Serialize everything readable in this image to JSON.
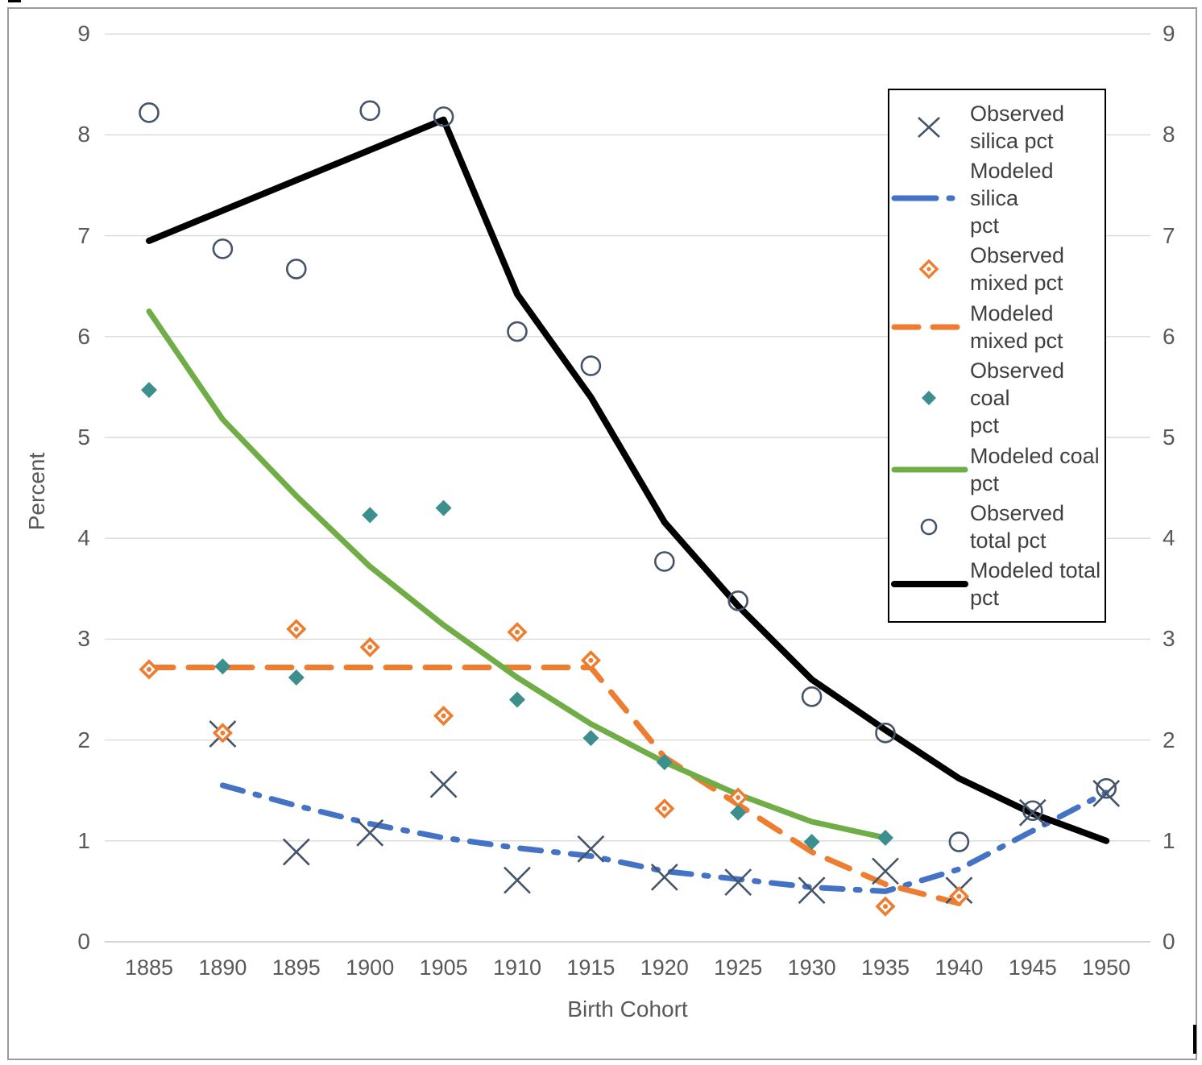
{
  "chart_data": {
    "type": "line",
    "title": "",
    "xlabel": "Birth Cohort",
    "ylabel": "Percent",
    "x_categories": [
      1885,
      1890,
      1895,
      1900,
      1905,
      1910,
      1915,
      1920,
      1925,
      1930,
      1935,
      1940,
      1945,
      1950
    ],
    "ylim": [
      0,
      9
    ],
    "yticks": [
      0,
      1,
      2,
      3,
      4,
      5,
      6,
      7,
      8,
      9
    ],
    "y_axis_sides": [
      "left",
      "right"
    ],
    "grid": true,
    "legend_position": "top-right",
    "series": [
      {
        "id": "modeled-silica",
        "label": "Modeled silica pct",
        "label_lines": [
          "Modeled silica",
          "pct"
        ],
        "kind": "line",
        "dash": "dashdot",
        "width": 7,
        "color": "#4472C4",
        "points": [
          [
            1890,
            1.55
          ],
          [
            1895,
            1.35
          ],
          [
            1900,
            1.17
          ],
          [
            1905,
            1.03
          ],
          [
            1910,
            0.93
          ],
          [
            1915,
            0.85
          ],
          [
            1920,
            0.7
          ],
          [
            1925,
            0.62
          ],
          [
            1930,
            0.54
          ],
          [
            1935,
            0.5
          ],
          [
            1940,
            0.72
          ],
          [
            1945,
            1.1
          ],
          [
            1950,
            1.48
          ]
        ]
      },
      {
        "id": "modeled-mixed",
        "label": "Modeled mixed pct",
        "label_lines": [
          "Modeled",
          "mixed pct"
        ],
        "kind": "line",
        "dash": "dashed",
        "width": 7,
        "color": "#ED7D31",
        "points": [
          [
            1885,
            2.72
          ],
          [
            1890,
            2.72
          ],
          [
            1895,
            2.72
          ],
          [
            1900,
            2.72
          ],
          [
            1905,
            2.72
          ],
          [
            1910,
            2.72
          ],
          [
            1915,
            2.72
          ],
          [
            1920,
            1.83
          ],
          [
            1925,
            1.36
          ],
          [
            1930,
            0.89
          ],
          [
            1935,
            0.57
          ],
          [
            1940,
            0.38
          ]
        ]
      },
      {
        "id": "modeled-coal",
        "label": "Modeled coal pct",
        "label_lines": [
          "Modeled coal",
          "pct"
        ],
        "kind": "line",
        "dash": "solid",
        "width": 7,
        "color": "#70AD47",
        "points": [
          [
            1885,
            6.25
          ],
          [
            1890,
            5.18
          ],
          [
            1895,
            4.42
          ],
          [
            1900,
            3.72
          ],
          [
            1905,
            3.14
          ],
          [
            1910,
            2.62
          ],
          [
            1915,
            2.16
          ],
          [
            1920,
            1.78
          ],
          [
            1925,
            1.46
          ],
          [
            1930,
            1.19
          ],
          [
            1935,
            1.03
          ]
        ]
      },
      {
        "id": "modeled-total",
        "label": "Modeled total pct",
        "label_lines": [
          "Modeled total",
          "pct"
        ],
        "kind": "line",
        "dash": "solid",
        "width": 8,
        "color": "#000000",
        "points": [
          [
            1885,
            6.95
          ],
          [
            1890,
            7.25
          ],
          [
            1895,
            7.55
          ],
          [
            1900,
            7.85
          ],
          [
            1905,
            8.15
          ],
          [
            1910,
            6.42
          ],
          [
            1915,
            5.4
          ],
          [
            1920,
            4.16
          ],
          [
            1925,
            3.33
          ],
          [
            1930,
            2.6
          ],
          [
            1935,
            2.1
          ],
          [
            1940,
            1.62
          ],
          [
            1945,
            1.27
          ],
          [
            1950,
            1.0
          ]
        ]
      },
      {
        "id": "observed-silica",
        "label": "Observed silica pct",
        "label_lines": [
          "Observed",
          "silica pct"
        ],
        "kind": "scatter",
        "marker": "x",
        "color": "#44546A",
        "points": [
          [
            1890,
            2.06
          ],
          [
            1895,
            0.89
          ],
          [
            1900,
            1.08
          ],
          [
            1905,
            1.56
          ],
          [
            1910,
            0.61
          ],
          [
            1915,
            0.92
          ],
          [
            1920,
            0.64
          ],
          [
            1925,
            0.59
          ],
          [
            1930,
            0.51
          ],
          [
            1935,
            0.7
          ],
          [
            1940,
            0.51
          ],
          [
            1945,
            1.28
          ],
          [
            1950,
            1.47
          ]
        ]
      },
      {
        "id": "observed-mixed",
        "label": "Observed mixed pct",
        "label_lines": [
          "Observed",
          "mixed pct"
        ],
        "kind": "scatter",
        "marker": "diamond-open",
        "color": "#ED7D31",
        "points": [
          [
            1885,
            2.7
          ],
          [
            1890,
            2.07
          ],
          [
            1895,
            3.1
          ],
          [
            1900,
            2.92
          ],
          [
            1905,
            2.24
          ],
          [
            1910,
            3.07
          ],
          [
            1915,
            2.79
          ],
          [
            1920,
            1.32
          ],
          [
            1925,
            1.43
          ],
          [
            1935,
            0.35
          ],
          [
            1940,
            0.45
          ]
        ]
      },
      {
        "id": "observed-coal",
        "label": "Observed coal pct",
        "label_lines": [
          "Observed coal",
          "pct"
        ],
        "kind": "scatter",
        "marker": "diamond",
        "color": "#3C8F8C",
        "points": [
          [
            1885,
            5.47
          ],
          [
            1890,
            2.73
          ],
          [
            1895,
            2.62
          ],
          [
            1900,
            4.23
          ],
          [
            1905,
            4.3
          ],
          [
            1910,
            2.4
          ],
          [
            1915,
            2.02
          ],
          [
            1920,
            1.78
          ],
          [
            1925,
            1.28
          ],
          [
            1930,
            0.99
          ],
          [
            1935,
            1.03
          ]
        ]
      },
      {
        "id": "observed-total",
        "label": "Observed total pct",
        "label_lines": [
          "Observed",
          "total pct"
        ],
        "kind": "scatter",
        "marker": "circle",
        "color": "#44546A",
        "points": [
          [
            1885,
            8.22
          ],
          [
            1890,
            6.87
          ],
          [
            1895,
            6.67
          ],
          [
            1900,
            8.24
          ],
          [
            1905,
            8.18
          ],
          [
            1910,
            6.05
          ],
          [
            1915,
            5.71
          ],
          [
            1920,
            3.77
          ],
          [
            1925,
            3.38
          ],
          [
            1930,
            2.43
          ],
          [
            1935,
            2.07
          ],
          [
            1940,
            0.99
          ],
          [
            1945,
            1.3
          ],
          [
            1950,
            1.52
          ]
        ]
      }
    ],
    "legend_order": [
      "observed-silica",
      "modeled-silica",
      "observed-mixed",
      "modeled-mixed",
      "observed-coal",
      "modeled-coal",
      "observed-total",
      "modeled-total"
    ]
  },
  "colors": {
    "grid": "#D9D9D9",
    "grid_zero": "#C6C6C6",
    "axis_text": "#595959",
    "legend_text": "#404040",
    "background": "#FFFFFF",
    "frame_border": "#9B9B9B",
    "legend_border": "#000000"
  }
}
